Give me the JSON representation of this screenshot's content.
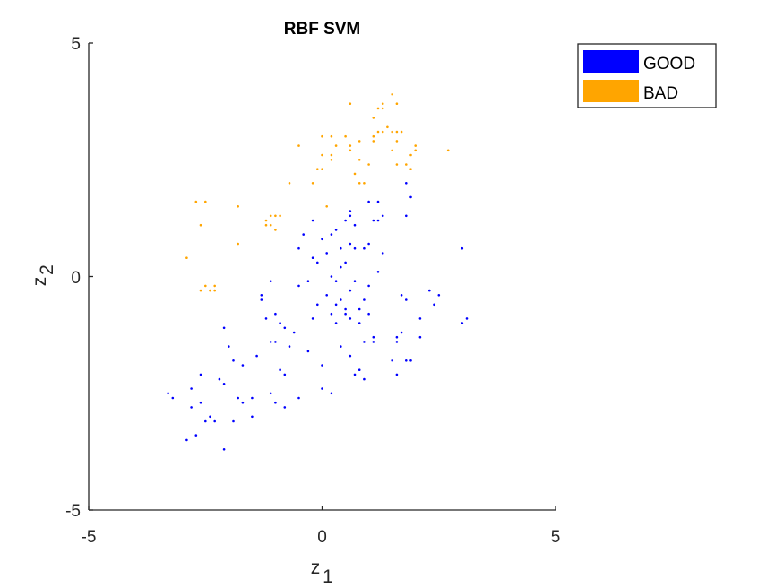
{
  "chart_data": {
    "type": "scatter",
    "title": "RBF SVM",
    "xlabel": "z",
    "xlabel_sub": "1",
    "ylabel": "z",
    "ylabel_sub": "2",
    "xlim": [
      -5,
      5
    ],
    "ylim": [
      -5,
      5
    ],
    "xticks": [
      "-5",
      "0",
      "5"
    ],
    "yticks": [
      "-5",
      "0",
      "5"
    ],
    "grid": false,
    "legend_position": "top-right",
    "series": [
      {
        "name": "GOOD",
        "color": "#0000ff",
        "points": [
          [
            -3.3,
            -2.5
          ],
          [
            -3.2,
            -2.6
          ],
          [
            -2.8,
            -2.4
          ],
          [
            -2.8,
            -2.8
          ],
          [
            -2.9,
            -3.5
          ],
          [
            -2.7,
            -3.4
          ],
          [
            -2.6,
            -2.1
          ],
          [
            -2.6,
            -2.7
          ],
          [
            -2.5,
            -3.1
          ],
          [
            -2.4,
            -3.0
          ],
          [
            -2.3,
            -3.1
          ],
          [
            -2.2,
            -2.2
          ],
          [
            -2.1,
            -2.3
          ],
          [
            -2.1,
            -3.7
          ],
          [
            -2.1,
            -1.1
          ],
          [
            -2.0,
            -1.5
          ],
          [
            -1.9,
            -1.8
          ],
          [
            -1.9,
            -3.1
          ],
          [
            -1.8,
            -2.6
          ],
          [
            -1.7,
            -1.9
          ],
          [
            -1.7,
            -2.7
          ],
          [
            -1.5,
            -2.6
          ],
          [
            -1.5,
            -3.0
          ],
          [
            -1.4,
            -1.7
          ],
          [
            -1.3,
            -0.4
          ],
          [
            -1.3,
            -0.5
          ],
          [
            -1.2,
            -0.9
          ],
          [
            -1.1,
            -1.4
          ],
          [
            -1.1,
            -2.5
          ],
          [
            -1.0,
            -1.4
          ],
          [
            -1.0,
            -2.7
          ],
          [
            -1.1,
            -0.1
          ],
          [
            -1.0,
            -0.8
          ],
          [
            -0.9,
            -1.0
          ],
          [
            -0.9,
            -2.0
          ],
          [
            -0.8,
            -1.1
          ],
          [
            -0.8,
            -2.8
          ],
          [
            -0.8,
            -2.1
          ],
          [
            -0.7,
            -1.5
          ],
          [
            -0.6,
            -1.2
          ],
          [
            -0.5,
            0.6
          ],
          [
            -0.5,
            -0.2
          ],
          [
            -0.5,
            -2.6
          ],
          [
            -0.4,
            0.9
          ],
          [
            -0.3,
            -0.1
          ],
          [
            -0.3,
            -1.6
          ],
          [
            -0.2,
            0.4
          ],
          [
            -0.2,
            1.2
          ],
          [
            -0.2,
            -0.9
          ],
          [
            -0.1,
            0.3
          ],
          [
            -0.1,
            -0.6
          ],
          [
            0.0,
            0.8
          ],
          [
            0.0,
            -1.9
          ],
          [
            0.0,
            -2.4
          ],
          [
            0.1,
            0.5
          ],
          [
            0.1,
            -0.4
          ],
          [
            0.2,
            -0.8
          ],
          [
            0.2,
            0.0
          ],
          [
            0.2,
            -2.5
          ],
          [
            0.2,
            0.9
          ],
          [
            0.3,
            1.0
          ],
          [
            0.3,
            -0.1
          ],
          [
            0.3,
            -0.6
          ],
          [
            0.3,
            -1.0
          ],
          [
            0.4,
            0.6
          ],
          [
            0.4,
            0.2
          ],
          [
            0.4,
            -1.5
          ],
          [
            0.4,
            -0.5
          ],
          [
            0.5,
            -0.7
          ],
          [
            0.5,
            1.2
          ],
          [
            0.5,
            0.3
          ],
          [
            0.5,
            -0.8
          ],
          [
            0.6,
            1.3
          ],
          [
            0.6,
            0.7
          ],
          [
            0.6,
            -0.3
          ],
          [
            0.6,
            -0.9
          ],
          [
            0.6,
            -1.7
          ],
          [
            0.6,
            1.4
          ],
          [
            0.7,
            1.1
          ],
          [
            0.7,
            0.6
          ],
          [
            0.7,
            -0.1
          ],
          [
            0.7,
            -2.1
          ],
          [
            0.8,
            -0.7
          ],
          [
            0.8,
            -1.0
          ],
          [
            0.8,
            -2.0
          ],
          [
            0.9,
            0.6
          ],
          [
            0.9,
            -0.5
          ],
          [
            0.9,
            -1.4
          ],
          [
            0.9,
            -2.2
          ],
          [
            1.0,
            1.6
          ],
          [
            1.0,
            0.7
          ],
          [
            1.0,
            -0.2
          ],
          [
            1.0,
            -0.8
          ],
          [
            1.1,
            1.2
          ],
          [
            1.1,
            -1.3
          ],
          [
            1.1,
            -1.4
          ],
          [
            1.2,
            1.6
          ],
          [
            1.2,
            1.2
          ],
          [
            1.2,
            0.1
          ],
          [
            1.3,
            1.3
          ],
          [
            1.3,
            0.5
          ],
          [
            1.5,
            -1.8
          ],
          [
            1.6,
            -1.3
          ],
          [
            1.6,
            -1.4
          ],
          [
            1.6,
            -2.1
          ],
          [
            1.7,
            -0.4
          ],
          [
            1.7,
            -1.2
          ],
          [
            1.8,
            2.0
          ],
          [
            1.8,
            -1.8
          ],
          [
            1.8,
            1.3
          ],
          [
            1.8,
            -0.5
          ],
          [
            1.9,
            1.7
          ],
          [
            1.9,
            -1.8
          ],
          [
            2.1,
            -0.9
          ],
          [
            2.1,
            -1.3
          ],
          [
            2.3,
            -0.3
          ],
          [
            2.4,
            -0.6
          ],
          [
            2.5,
            -0.4
          ],
          [
            3.0,
            0.6
          ],
          [
            3.0,
            -1.0
          ],
          [
            3.1,
            -0.9
          ]
        ]
      },
      {
        "name": "BAD",
        "color": "#ffa500",
        "points": [
          [
            -2.9,
            0.4
          ],
          [
            -2.7,
            1.6
          ],
          [
            -2.6,
            1.1
          ],
          [
            -2.6,
            -0.3
          ],
          [
            -2.5,
            1.6
          ],
          [
            -2.5,
            -0.2
          ],
          [
            -2.4,
            -0.3
          ],
          [
            -2.3,
            -0.3
          ],
          [
            -2.3,
            -0.2
          ],
          [
            -1.8,
            1.5
          ],
          [
            -1.8,
            0.7
          ],
          [
            -1.2,
            1.1
          ],
          [
            -1.2,
            1.2
          ],
          [
            -1.1,
            1.1
          ],
          [
            -1.1,
            1.3
          ],
          [
            -1.0,
            1.3
          ],
          [
            -1.0,
            1.0
          ],
          [
            -0.9,
            1.3
          ],
          [
            -0.7,
            2.0
          ],
          [
            -0.5,
            2.8
          ],
          [
            -0.2,
            2.0
          ],
          [
            -0.1,
            2.3
          ],
          [
            0.0,
            2.3
          ],
          [
            0.0,
            2.6
          ],
          [
            0.0,
            3.0
          ],
          [
            0.1,
            1.5
          ],
          [
            0.2,
            2.6
          ],
          [
            0.2,
            2.5
          ],
          [
            0.2,
            3.0
          ],
          [
            0.3,
            2.8
          ],
          [
            0.5,
            3.0
          ],
          [
            0.6,
            2.7
          ],
          [
            0.6,
            2.8
          ],
          [
            0.6,
            3.7
          ],
          [
            0.7,
            2.2
          ],
          [
            0.8,
            2.0
          ],
          [
            0.8,
            2.5
          ],
          [
            0.8,
            2.9
          ],
          [
            0.9,
            2.0
          ],
          [
            1.0,
            2.4
          ],
          [
            1.1,
            3.0
          ],
          [
            1.1,
            2.9
          ],
          [
            1.1,
            3.4
          ],
          [
            1.2,
            3.1
          ],
          [
            1.2,
            3.6
          ],
          [
            1.3,
            3.7
          ],
          [
            1.3,
            3.6
          ],
          [
            1.3,
            3.1
          ],
          [
            1.4,
            3.2
          ],
          [
            1.5,
            3.1
          ],
          [
            1.5,
            3.9
          ],
          [
            1.5,
            2.7
          ],
          [
            1.6,
            2.9
          ],
          [
            1.6,
            2.4
          ],
          [
            1.6,
            3.7
          ],
          [
            1.6,
            3.1
          ],
          [
            1.7,
            3.1
          ],
          [
            1.8,
            2.4
          ],
          [
            1.9,
            2.6
          ],
          [
            1.9,
            2.3
          ],
          [
            2.0,
            2.8
          ],
          [
            2.0,
            2.7
          ],
          [
            2.7,
            2.7
          ]
        ]
      }
    ]
  }
}
